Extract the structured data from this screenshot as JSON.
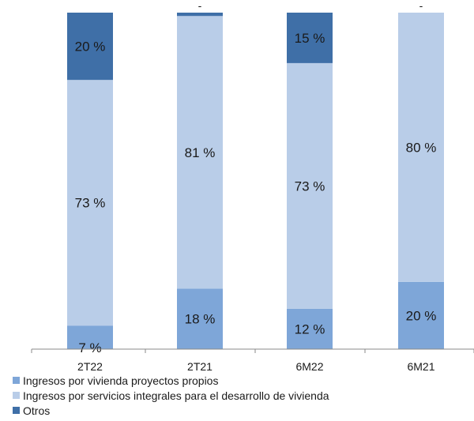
{
  "chart_data": {
    "type": "bar",
    "stacked": true,
    "normalized_percent": true,
    "categories": [
      "2T22",
      "2T21",
      "6M22",
      "6M21"
    ],
    "series": [
      {
        "name": "Ingresos por vivienda proyectos propios",
        "color": "#7ea6d8",
        "values": [
          7,
          18,
          12,
          20
        ],
        "labels": [
          "7 %",
          "18 %",
          "12 %",
          "20 %"
        ]
      },
      {
        "name": "Ingresos por servicios integrales para el desarrollo de vivienda",
        "color": "#b9cde8",
        "values": [
          73,
          81,
          73,
          80
        ],
        "labels": [
          "73 %",
          "81 %",
          "73 %",
          "80 %"
        ]
      },
      {
        "name": "Otros",
        "color": "#3f6fa7",
        "values": [
          20,
          1,
          15,
          0
        ],
        "labels": [
          "20 %",
          "-",
          "15 %",
          "-"
        ]
      }
    ],
    "ylim": [
      0,
      100
    ],
    "grid": false,
    "legend_position": "bottom"
  }
}
